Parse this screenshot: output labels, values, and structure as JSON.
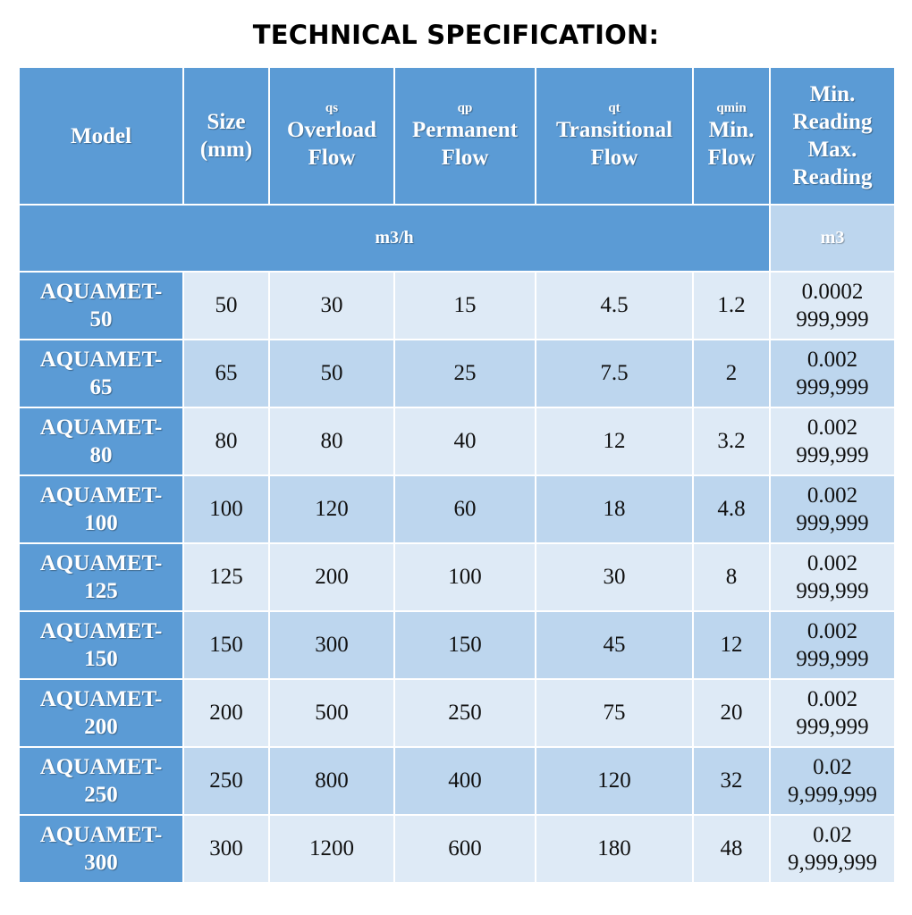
{
  "title": "TECHNICAL SPECIFICATION:",
  "header": {
    "model": "Model",
    "size_line1": "Size",
    "size_line2": "(mm)",
    "qs_symbol": "qs",
    "qs_line1": "Overload",
    "qs_line2": "Flow",
    "qp_symbol": "qp",
    "qp_line1": "Permanent",
    "qp_line2": "Flow",
    "qt_symbol": "qt",
    "qt_line1": "Transitional",
    "qt_line2": "Flow",
    "qmin_symbol": "qmin",
    "qmin_line1": "Min.",
    "qmin_line2": "Flow",
    "reading_line1": "Min.",
    "reading_line2": "Reading",
    "reading_line3": "Max.",
    "reading_line4": "Reading"
  },
  "units": {
    "flow": "m3/h",
    "volume": "m3"
  },
  "rows": [
    {
      "model_line1": "AQUAMET-",
      "model_line2": "50",
      "size": "50",
      "qs": "30",
      "qp": "15",
      "qt": "4.5",
      "qmin": "1.2",
      "min_reading": "0.0002",
      "max_reading": "999,999"
    },
    {
      "model_line1": "AQUAMET-",
      "model_line2": "65",
      "size": "65",
      "qs": "50",
      "qp": "25",
      "qt": "7.5",
      "qmin": "2",
      "min_reading": "0.002",
      "max_reading": "999,999"
    },
    {
      "model_line1": "AQUAMET-",
      "model_line2": "80",
      "size": "80",
      "qs": "80",
      "qp": "40",
      "qt": "12",
      "qmin": "3.2",
      "min_reading": "0.002",
      "max_reading": "999,999"
    },
    {
      "model_line1": "AQUAMET-",
      "model_line2": "100",
      "size": "100",
      "qs": "120",
      "qp": "60",
      "qt": "18",
      "qmin": "4.8",
      "min_reading": "0.002",
      "max_reading": "999,999"
    },
    {
      "model_line1": "AQUAMET-",
      "model_line2": "125",
      "size": "125",
      "qs": "200",
      "qp": "100",
      "qt": "30",
      "qmin": "8",
      "min_reading": "0.002",
      "max_reading": "999,999"
    },
    {
      "model_line1": "AQUAMET-",
      "model_line2": "150",
      "size": "150",
      "qs": "300",
      "qp": "150",
      "qt": "45",
      "qmin": "12",
      "min_reading": "0.002",
      "max_reading": "999,999"
    },
    {
      "model_line1": "AQUAMET-",
      "model_line2": "200",
      "size": "200",
      "qs": "500",
      "qp": "250",
      "qt": "75",
      "qmin": "20",
      "min_reading": "0.002",
      "max_reading": "999,999"
    },
    {
      "model_line1": "AQUAMET-",
      "model_line2": "250",
      "size": "250",
      "qs": "800",
      "qp": "400",
      "qt": "120",
      "qmin": "32",
      "min_reading": "0.02",
      "max_reading": "9,999,999"
    },
    {
      "model_line1": "AQUAMET-",
      "model_line2": "300",
      "size": "300",
      "qs": "1200",
      "qp": "600",
      "qt": "180",
      "qmin": "48",
      "min_reading": "0.02",
      "max_reading": "9,999,999"
    }
  ],
  "colors": {
    "header_blue": "#5b9bd5",
    "row_light": "#deeaf6",
    "row_dark": "#bdd6ee"
  }
}
